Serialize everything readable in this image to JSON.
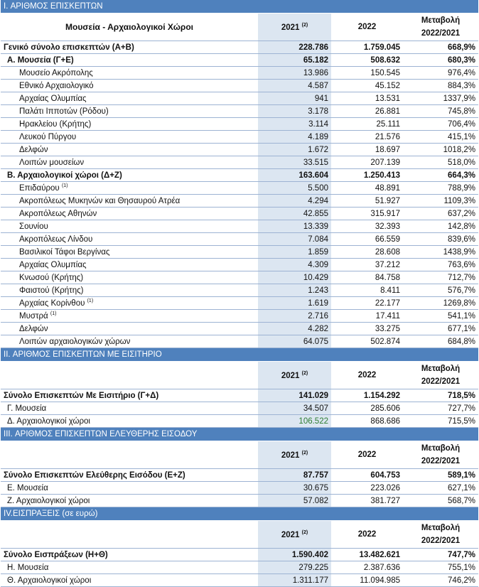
{
  "sections": [
    {
      "title": "I. ΑΡΙΘΜΟΣ ΕΠΙΣΚΕΠΤΩΝ",
      "col_label": "Μουσεία - Αρχαιολογικοί Χώροι",
      "col_2021": "2021",
      "col_2021_note": "(2)",
      "col_2022": "2022",
      "col_change": "Μεταβολή 2022/2021",
      "rows": [
        {
          "label": "Γενικό σύνολο επισκεπτών (Α+Β)",
          "v2021": "228.786",
          "v2022": "1.759.045",
          "change": "668,9%",
          "bold": true,
          "ind": 0
        },
        {
          "label": "Α. Μουσεία (Γ+Ε)",
          "v2021": "65.182",
          "v2022": "508.632",
          "change": "680,3%",
          "bold": true,
          "ind": 1
        },
        {
          "label": "Μουσείο Ακρόπολης",
          "v2021": "13.986",
          "v2022": "150.545",
          "change": "976,4%",
          "ind": 2
        },
        {
          "label": "Εθνικό Αρχαιολογικό",
          "v2021": "4.587",
          "v2022": "45.152",
          "change": "884,3%",
          "ind": 2
        },
        {
          "label": "Αρχαίας Ολυμπίας",
          "v2021": "941",
          "v2022": "13.531",
          "change": "1337,9%",
          "ind": 2
        },
        {
          "label": "Παλάτι Ιπποτών (Ρόδου)",
          "v2021": "3.178",
          "v2022": "26.881",
          "change": "745,8%",
          "ind": 2
        },
        {
          "label": "Ηρακλείου (Κρήτης)",
          "v2021": "3.114",
          "v2022": "25.111",
          "change": "706,4%",
          "ind": 2
        },
        {
          "label": "Λευκού Πύργου",
          "v2021": "4.189",
          "v2022": "21.576",
          "change": "415,1%",
          "ind": 2
        },
        {
          "label": "Δελφών",
          "v2021": "1.672",
          "v2022": "18.697",
          "change": "1018,2%",
          "ind": 2
        },
        {
          "label": "Λοιπών μουσείων",
          "v2021": "33.515",
          "v2022": "207.139",
          "change": "518,0%",
          "ind": 2
        },
        {
          "label": "Β. Αρχαιολογικοί χώροι (Δ+Ζ)",
          "v2021": "163.604",
          "v2022": "1.250.413",
          "change": "664,3%",
          "bold": true,
          "ind": 1
        },
        {
          "label": "Επιδαύρου",
          "note": "(1)",
          "v2021": "5.500",
          "v2022": "48.891",
          "change": "788,9%",
          "ind": 2
        },
        {
          "label": "Ακροπόλεως Μυκηνών και Θησαυρού Ατρέα",
          "v2021": "4.294",
          "v2022": "51.927",
          "change": "1109,3%",
          "ind": 2
        },
        {
          "label": "Ακροπόλεως Αθηνών",
          "v2021": "42.855",
          "v2022": "315.917",
          "change": "637,2%",
          "ind": 2
        },
        {
          "label": "Σουνίου",
          "v2021": "13.339",
          "v2022": "32.393",
          "change": "142,8%",
          "ind": 2
        },
        {
          "label": "Ακροπόλεως Λίνδου",
          "v2021": "7.084",
          "v2022": "66.559",
          "change": "839,6%",
          "ind": 2
        },
        {
          "label": "Βασιλικοί Τάφοι Βεργίνας",
          "v2021": "1.859",
          "v2022": "28.608",
          "change": "1438,9%",
          "ind": 2
        },
        {
          "label": "Αρχαίας Ολυμπίας",
          "v2021": "4.309",
          "v2022": "37.212",
          "change": "763,6%",
          "ind": 2
        },
        {
          "label": "Κνωσού (Κρήτης)",
          "v2021": "10.429",
          "v2022": "84.758",
          "change": "712,7%",
          "ind": 2
        },
        {
          "label": "Φαιστού (Κρήτης)",
          "v2021": "1.243",
          "v2022": "8.411",
          "change": "576,7%",
          "ind": 2
        },
        {
          "label": "Αρχαίας Κορίνθου",
          "note": "(1)",
          "v2021": "1.619",
          "v2022": "22.177",
          "change": "1269,8%",
          "ind": 2
        },
        {
          "label": "Μυστρά",
          "note": "(1)",
          "v2021": "2.716",
          "v2022": "17.411",
          "change": "541,1%",
          "ind": 2
        },
        {
          "label": "Δελφών",
          "v2021": "4.282",
          "v2022": "33.275",
          "change": "677,1%",
          "ind": 2
        },
        {
          "label": "Λοιπών αρχαιολογικών χώρων",
          "v2021": "64.075",
          "v2022": "502.874",
          "change": "684,8%",
          "ind": 2
        }
      ]
    },
    {
      "title": "II. ΑΡΙΘΜΟΣ ΕΠΙΣΚΕΠΤΩΝ ΜΕ ΕΙΣΙΤΗΡΙΟ",
      "col_label": "",
      "col_2021": "2021",
      "col_2021_note": "(2)",
      "col_2022": "2022",
      "col_change": "Μεταβολή 2022/2021",
      "rows": [
        {
          "label": "Σύνολο Επισκεπτών Με Εισιτήριο (Γ+Δ)",
          "v2021": "141.029",
          "v2022": "1.154.292",
          "change": "718,5%",
          "bold": true,
          "ind": 0
        },
        {
          "label": "Γ. Μουσεία",
          "v2021": "34.507",
          "v2022": "285.606",
          "change": "727,7%",
          "ind": 1
        },
        {
          "label": "Δ. Αρχαιολογικοί χώροι",
          "v2021": "106.522",
          "v2022": "868.686",
          "change": "715,5%",
          "ind": 1,
          "green": true
        }
      ]
    },
    {
      "title": "III. ΑΡΙΘΜΟΣ ΕΠΙΣΚΕΠΤΩΝ ΕΛΕΥΘΕΡΗΣ ΕΙΣΟΔΟΥ",
      "col_label": "",
      "col_2021": "2021",
      "col_2021_note": "(2)",
      "col_2022": "2022",
      "col_change": "Μεταβολή 2022/2021",
      "rows": [
        {
          "label": "Σύνολο Επισκεπτών Ελεύθερης Εισόδου (Ε+Ζ)",
          "v2021": "87.757",
          "v2022": "604.753",
          "change": "589,1%",
          "bold": true,
          "ind": 0
        },
        {
          "label": "Ε. Μουσεία",
          "v2021": "30.675",
          "v2022": "223.026",
          "change": "627,1%",
          "ind": 1
        },
        {
          "label": "Ζ. Αρχαιολογικοί χώροι",
          "v2021": "57.082",
          "v2022": "381.727",
          "change": "568,7%",
          "ind": 1
        }
      ]
    },
    {
      "title": "IV.ΕΙΣΠΡΑΞΕΙΣ (σε ευρώ)",
      "col_label": "",
      "col_2021": "2021",
      "col_2021_note": "(2)",
      "col_2022": "2022",
      "col_change": "Μεταβολή 2022/2021",
      "rows": [
        {
          "label": "Σύνολο Εισπράξεων (Η+Θ)",
          "v2021": "1.590.402",
          "v2022": "13.482.621",
          "change": "747,7%",
          "bold": true,
          "ind": 0
        },
        {
          "label": "Η. Μουσεία",
          "v2021": "279.225",
          "v2022": "2.387.636",
          "change": "755,1%",
          "ind": 1
        },
        {
          "label": "Θ. Αρχαιολογικοί χώροι",
          "v2021": "1.311.177",
          "v2022": "11.094.985",
          "change": "746,2%",
          "ind": 1
        }
      ]
    }
  ]
}
